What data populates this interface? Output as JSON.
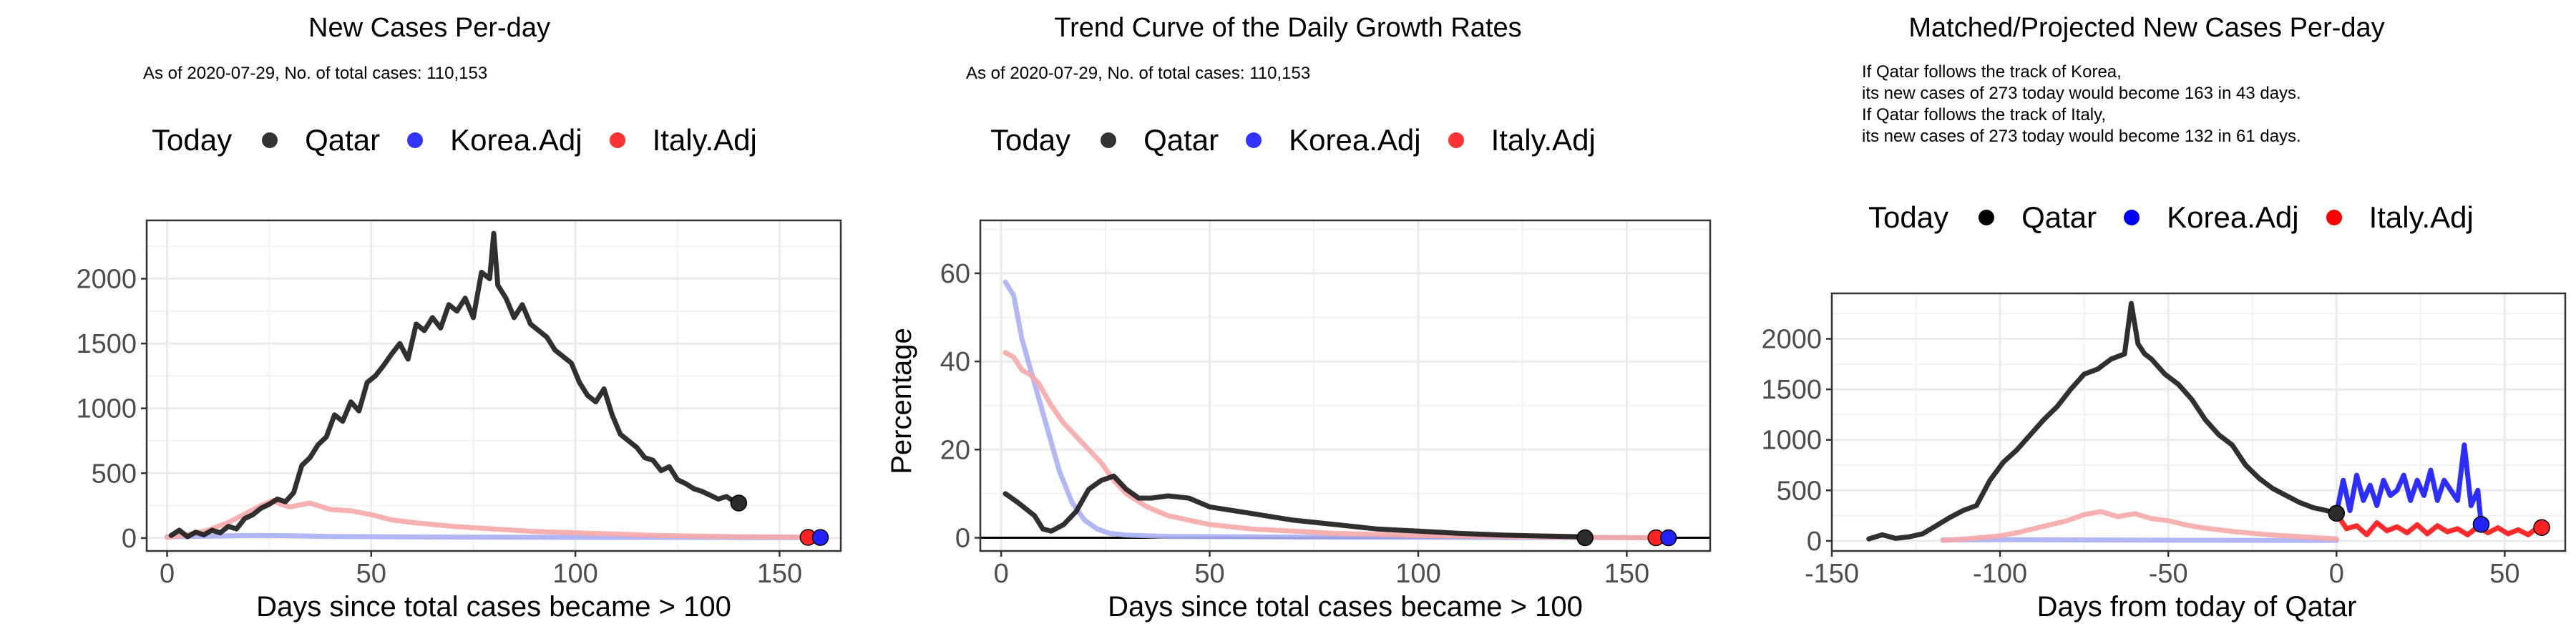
{
  "colors": {
    "today": "#000000",
    "qatar": "#1a1a1a",
    "korea": "#3333ff",
    "italy": "#ff3333",
    "korea_line": "#aab0f5",
    "italy_line": "#f6a9a9",
    "grid": "#ebebeb",
    "axis_text": "#4d4d4d"
  },
  "legend": {
    "title": "Today",
    "items": [
      "Qatar",
      "Korea.Adj",
      "Italy.Adj"
    ]
  },
  "chart_data": [
    {
      "type": "line",
      "title": "New Cases Per-day",
      "subtitle": "As of 2020-07-29, No. of total cases: 110,153",
      "xlabel": "Days since total cases became > 100",
      "ylabel": "",
      "xlim": [
        -5,
        165
      ],
      "ylim": [
        -100,
        2450
      ],
      "xticks": [
        0,
        50,
        100,
        150
      ],
      "yticks": [
        0,
        500,
        1000,
        1500,
        2000
      ],
      "grid": true,
      "legend_position": "top",
      "series": [
        {
          "name": "Qatar",
          "x": [
            1,
            3,
            5,
            7,
            9,
            11,
            13,
            15,
            17,
            19,
            21,
            23,
            25,
            27,
            29,
            31,
            33,
            35,
            37,
            39,
            41,
            43,
            45,
            47,
            49,
            51,
            53,
            55,
            57,
            59,
            61,
            63,
            65,
            67,
            69,
            71,
            73,
            75,
            77,
            79,
            80,
            81,
            83,
            85,
            87,
            89,
            91,
            93,
            95,
            97,
            99,
            101,
            103,
            105,
            107,
            109,
            111,
            113,
            115,
            117,
            119,
            121,
            123,
            125,
            127,
            129,
            131,
            133,
            135,
            137,
            139,
            140
          ],
          "y": [
            20,
            60,
            10,
            45,
            25,
            60,
            40,
            90,
            70,
            150,
            180,
            230,
            260,
            300,
            280,
            350,
            560,
            620,
            720,
            780,
            950,
            900,
            1050,
            980,
            1200,
            1250,
            1330,
            1420,
            1500,
            1380,
            1650,
            1600,
            1700,
            1620,
            1800,
            1750,
            1850,
            1700,
            2050,
            2000,
            2350,
            1950,
            1850,
            1700,
            1800,
            1650,
            1600,
            1550,
            1450,
            1400,
            1350,
            1200,
            1100,
            1050,
            1150,
            950,
            800,
            750,
            700,
            620,
            600,
            520,
            550,
            450,
            420,
            380,
            360,
            330,
            300,
            320,
            280,
            270
          ]
        },
        {
          "name": "Korea.Adj",
          "x": [
            0,
            10,
            20,
            30,
            40,
            60,
            80,
            100,
            120,
            140,
            160
          ],
          "y": [
            10,
            15,
            20,
            18,
            12,
            8,
            6,
            5,
            5,
            4,
            4
          ]
        },
        {
          "name": "Italy.Adj",
          "x": [
            0,
            5,
            10,
            15,
            20,
            23,
            26,
            28,
            30,
            35,
            40,
            45,
            50,
            55,
            60,
            70,
            80,
            90,
            100,
            110,
            120,
            130,
            140,
            150,
            157
          ],
          "y": [
            5,
            25,
            60,
            120,
            200,
            250,
            290,
            260,
            240,
            270,
            220,
            210,
            180,
            140,
            120,
            90,
            70,
            50,
            40,
            30,
            20,
            15,
            10,
            8,
            5
          ]
        }
      ],
      "today_points": [
        {
          "series": "Qatar",
          "x": 140,
          "y": 270
        },
        {
          "series": "Italy.Adj",
          "x": 157,
          "y": 5
        },
        {
          "series": "Korea.Adj",
          "x": 160,
          "y": 4
        }
      ]
    },
    {
      "type": "line",
      "title": "Trend Curve of the Daily Growth Rates",
      "subtitle": "As of 2020-07-29, No. of total cases: 110,153",
      "xlabel": "Days since total cases became > 100",
      "ylabel": "Percentage",
      "xlim": [
        -5,
        170
      ],
      "ylim": [
        -3,
        72
      ],
      "xticks": [
        0,
        50,
        100,
        150
      ],
      "yticks": [
        0,
        20,
        40,
        60
      ],
      "grid": true,
      "hline": 0,
      "legend_position": "top",
      "series": [
        {
          "name": "Qatar",
          "x": [
            1,
            4,
            8,
            10,
            12,
            15,
            18,
            21,
            24,
            27,
            30,
            33,
            36,
            40,
            45,
            50,
            60,
            70,
            80,
            90,
            100,
            110,
            120,
            130,
            140
          ],
          "y": [
            10,
            8,
            5,
            2,
            1.5,
            3,
            6,
            11,
            13,
            14,
            11,
            9,
            9,
            9.5,
            9,
            7,
            5.5,
            4,
            3,
            2,
            1.5,
            1,
            0.6,
            0.4,
            0.2
          ]
        },
        {
          "name": "Korea.Adj",
          "x": [
            1,
            3,
            5,
            8,
            11,
            14,
            17,
            20,
            23,
            26,
            30,
            40,
            60,
            80,
            100,
            120,
            140,
            160
          ],
          "y": [
            58,
            55,
            45,
            35,
            25,
            15,
            8,
            4,
            2,
            1,
            0.6,
            0.3,
            0.2,
            0.1,
            0.1,
            0.05,
            0.05,
            0
          ]
        },
        {
          "name": "Italy.Adj",
          "x": [
            1,
            3,
            5,
            7,
            9,
            12,
            15,
            18,
            21,
            24,
            27,
            30,
            35,
            40,
            50,
            60,
            80,
            100,
            120,
            140,
            157
          ],
          "y": [
            42,
            41,
            38,
            37,
            35,
            30,
            26,
            23,
            20,
            17,
            13,
            10,
            7,
            5,
            3,
            2,
            1,
            0.5,
            0.3,
            0.1,
            0
          ]
        }
      ],
      "today_points": [
        {
          "series": "Qatar",
          "x": 140,
          "y": 0
        },
        {
          "series": "Italy.Adj",
          "x": 157,
          "y": 0
        },
        {
          "series": "Korea.Adj",
          "x": 160,
          "y": 0
        }
      ]
    },
    {
      "type": "line",
      "title": "Matched/Projected New Cases Per-day",
      "subtitle_lines": [
        "If Qatar follows the track of Korea,",
        "its new cases of 273 today would become 163 in 43 days.",
        "If Qatar follows the track of Italy,",
        "its new cases of 273 today would become 132 in 61 days."
      ],
      "xlabel": "Days from today of Qatar",
      "ylabel": "",
      "xlim": [
        -150,
        68
      ],
      "ylim": [
        -100,
        2450
      ],
      "xticks": [
        -150,
        -100,
        -50,
        0,
        50
      ],
      "yticks": [
        0,
        500,
        1000,
        1500,
        2000
      ],
      "grid": true,
      "legend_position": "top",
      "series": [
        {
          "name": "Qatar",
          "x": [
            -139,
            -135,
            -131,
            -127,
            -123,
            -119,
            -115,
            -111,
            -107,
            -103,
            -99,
            -95,
            -91,
            -87,
            -83,
            -79,
            -75,
            -71,
            -67,
            -63,
            -61,
            -59,
            -57,
            -55,
            -51,
            -47,
            -43,
            -39,
            -35,
            -31,
            -27,
            -23,
            -19,
            -15,
            -11,
            -7,
            -3,
            0
          ],
          "y": [
            20,
            60,
            25,
            40,
            70,
            150,
            230,
            300,
            350,
            600,
            780,
            900,
            1050,
            1200,
            1330,
            1500,
            1650,
            1700,
            1800,
            1850,
            2350,
            1950,
            1850,
            1800,
            1650,
            1550,
            1400,
            1200,
            1050,
            950,
            750,
            620,
            520,
            450,
            380,
            330,
            300,
            270
          ]
        },
        {
          "name": "Korea.Adj",
          "x": [
            0,
            2,
            4,
            6,
            8,
            10,
            12,
            14,
            16,
            18,
            20,
            22,
            24,
            26,
            28,
            30,
            32,
            34,
            36,
            38,
            40,
            42,
            43
          ],
          "y": [
            270,
            600,
            300,
            650,
            400,
            550,
            350,
            600,
            450,
            500,
            650,
            400,
            600,
            450,
            700,
            400,
            600,
            500,
            400,
            950,
            350,
            500,
            163
          ]
        },
        {
          "name": "Italy.Adj",
          "x": [
            0,
            3,
            6,
            9,
            12,
            15,
            18,
            21,
            24,
            27,
            30,
            33,
            36,
            39,
            42,
            45,
            48,
            51,
            54,
            57,
            60,
            61
          ],
          "y": [
            270,
            120,
            150,
            60,
            180,
            100,
            140,
            80,
            160,
            70,
            150,
            90,
            120,
            60,
            140,
            80,
            130,
            70,
            110,
            60,
            140,
            132
          ]
        },
        {
          "name": "Korea.Adj (history)",
          "x": [
            -117,
            -100,
            -80,
            -60,
            -40,
            -20,
            0
          ],
          "y": [
            10,
            12,
            10,
            8,
            6,
            5,
            5
          ]
        },
        {
          "name": "Italy.Adj (history)",
          "x": [
            -117,
            -110,
            -100,
            -95,
            -90,
            -85,
            -80,
            -75,
            -70,
            -65,
            -60,
            -55,
            -50,
            -45,
            -40,
            -30,
            -20,
            -10,
            0
          ],
          "y": [
            5,
            20,
            50,
            80,
            120,
            160,
            200,
            260,
            290,
            240,
            270,
            220,
            200,
            160,
            130,
            90,
            60,
            40,
            20
          ]
        }
      ],
      "today_points": [
        {
          "series": "Qatar",
          "x": 0,
          "y": 273
        },
        {
          "series": "Korea.Adj",
          "x": 43,
          "y": 163
        },
        {
          "series": "Italy.Adj",
          "x": 61,
          "y": 132
        }
      ]
    }
  ]
}
